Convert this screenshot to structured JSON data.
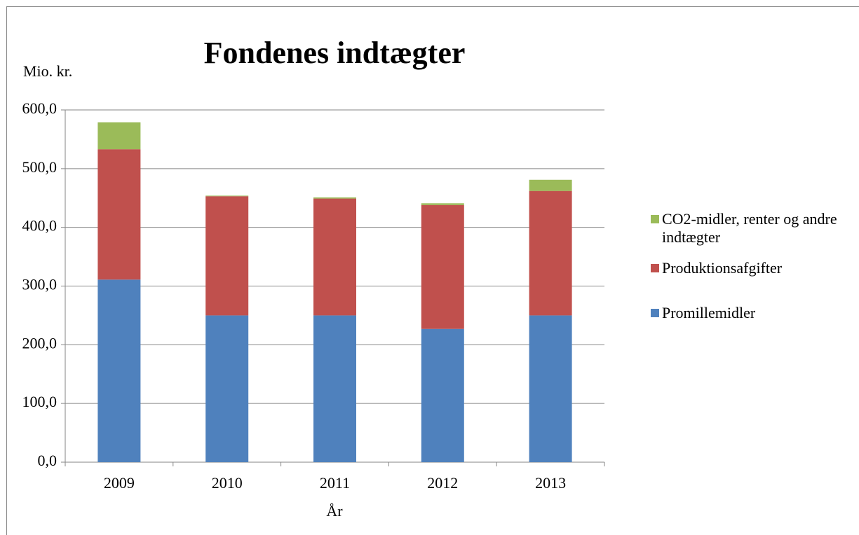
{
  "chart_data": {
    "type": "stacked-bar",
    "title": "Fondenes indtægter",
    "y_label": "Mio. kr.",
    "x_label": "År",
    "categories": [
      "2009",
      "2010",
      "2011",
      "2012",
      "2013"
    ],
    "series": [
      {
        "name": "Promillemidler",
        "color": "#4f81bd",
        "values": [
          311,
          250,
          250,
          227,
          250
        ]
      },
      {
        "name": "Produktionsafgifter",
        "color": "#c0504d",
        "values": [
          222,
          203,
          199,
          211,
          212
        ]
      },
      {
        "name": "CO2-midler, renter og andre indtægter",
        "color": "#9bbb59",
        "values": [
          46,
          1,
          2,
          3,
          19
        ]
      }
    ],
    "ylim": [
      0,
      600
    ],
    "yticks": [
      {
        "value": 0,
        "label": "0,0"
      },
      {
        "value": 100,
        "label": "100,0"
      },
      {
        "value": 200,
        "label": "200,0"
      },
      {
        "value": 300,
        "label": "300,0"
      },
      {
        "value": 400,
        "label": "400,0"
      },
      {
        "value": 500,
        "label": "500,0"
      },
      {
        "value": 600,
        "label": "600,0"
      }
    ],
    "grid": true,
    "legend": "right"
  }
}
